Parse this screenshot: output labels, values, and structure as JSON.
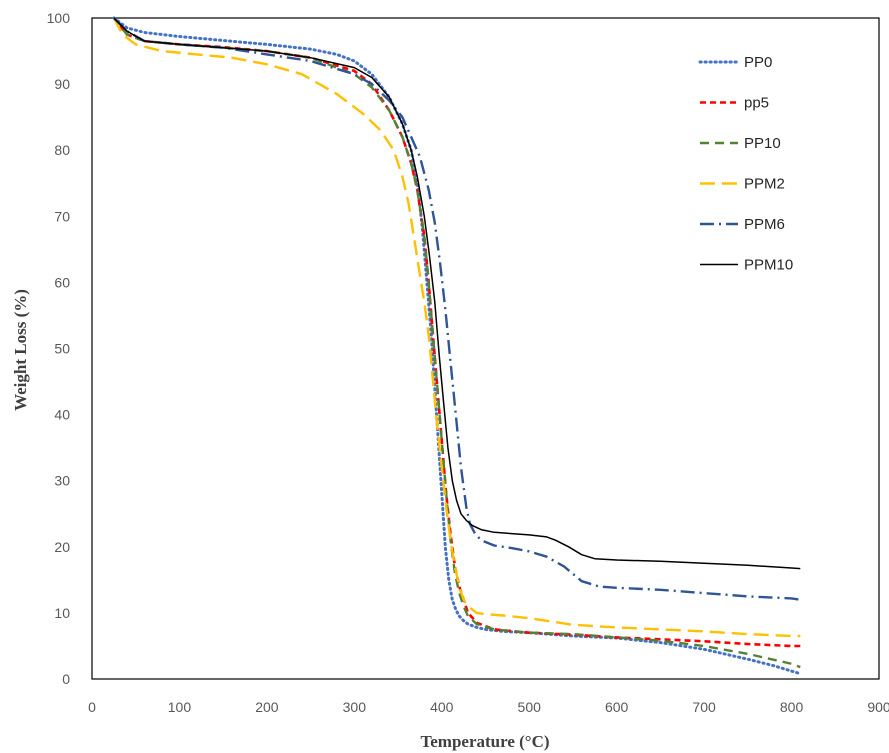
{
  "chart_data": {
    "type": "line",
    "title": "",
    "xlabel": "Temperature (°C)",
    "ylabel": "Weight Loss (%)",
    "xlim": [
      0,
      900
    ],
    "ylim": [
      0,
      100
    ],
    "xticks": [
      0,
      100,
      200,
      300,
      400,
      500,
      600,
      700,
      800,
      900
    ],
    "yticks": [
      0,
      10,
      20,
      30,
      40,
      50,
      60,
      70,
      80,
      90,
      100
    ],
    "grid": false,
    "legend_position": "top-right",
    "series": [
      {
        "name": "PP0",
        "color": "#4472C4",
        "dash": "dotted",
        "x": [
          25,
          40,
          60,
          100,
          150,
          200,
          250,
          280,
          300,
          320,
          340,
          355,
          365,
          372,
          378,
          383,
          388,
          392,
          396,
          400,
          404,
          408,
          412,
          416,
          420,
          425,
          430,
          440,
          450,
          470,
          500,
          550,
          600,
          650,
          700,
          750,
          780,
          800,
          810
        ],
        "y": [
          100,
          98.5,
          97.8,
          97.2,
          96.6,
          96,
          95.3,
          94.5,
          93.5,
          91.5,
          88,
          84,
          80,
          75,
          68,
          60,
          52,
          44,
          36,
          28,
          20,
          15,
          12,
          10.5,
          9.5,
          8.8,
          8.3,
          7.8,
          7.5,
          7.2,
          7,
          6.5,
          6.2,
          5.5,
          4.5,
          3,
          2,
          1.2,
          0.8
        ]
      },
      {
        "name": "pp5",
        "color": "#FF0000",
        "dash": "dashed",
        "x": [
          25,
          40,
          60,
          100,
          150,
          200,
          250,
          300,
          320,
          340,
          355,
          365,
          372,
          380,
          385,
          390,
          395,
          400,
          405,
          410,
          415,
          420,
          425,
          430,
          440,
          460,
          500,
          550,
          600,
          650,
          700,
          750,
          800,
          810
        ],
        "y": [
          100,
          97.5,
          96.5,
          96,
          95.6,
          95,
          94,
          92,
          90,
          86,
          82,
          78,
          74,
          67,
          60,
          52,
          44,
          36,
          28,
          22,
          17,
          14,
          12,
          10,
          8.5,
          7.5,
          7,
          6.7,
          6.3,
          6,
          5.7,
          5.3,
          5,
          5
        ]
      },
      {
        "name": "PP10",
        "color": "#548235",
        "dash": "longdash",
        "x": [
          25,
          40,
          60,
          100,
          150,
          200,
          250,
          300,
          320,
          340,
          355,
          365,
          372,
          380,
          385,
          390,
          395,
          400,
          405,
          410,
          415,
          420,
          425,
          430,
          440,
          460,
          500,
          550,
          600,
          650,
          700,
          750,
          800,
          810
        ],
        "y": [
          100,
          97.5,
          96.5,
          96,
          95.5,
          95,
          94,
          91.5,
          89.5,
          86,
          82,
          78,
          74,
          67,
          60,
          52,
          44,
          36,
          28,
          21,
          16,
          13,
          11,
          9.5,
          8.3,
          7.5,
          7,
          6.8,
          6.3,
          5.8,
          5,
          3.8,
          2.3,
          1.8
        ]
      },
      {
        "name": "PPM2",
        "color": "#FFC000",
        "dash": "verylong",
        "x": [
          25,
          35,
          50,
          80,
          120,
          160,
          200,
          240,
          280,
          310,
          330,
          345,
          355,
          362,
          368,
          374,
          380,
          386,
          390,
          395,
          400,
          405,
          410,
          415,
          420,
          425,
          430,
          440,
          450,
          470,
          500,
          520,
          550,
          600,
          650,
          700,
          750,
          800,
          810
        ],
        "y": [
          100,
          97.5,
          96,
          95,
          94.5,
          94,
          93,
          91.5,
          88.5,
          85.5,
          83,
          80,
          76,
          72,
          67,
          62,
          57,
          51,
          45,
          38,
          32,
          26,
          21,
          17,
          14,
          12,
          11,
          10,
          9.8,
          9.6,
          9.2,
          8.8,
          8.2,
          7.8,
          7.5,
          7.2,
          6.8,
          6.5,
          6.5
        ]
      },
      {
        "name": "PPM6",
        "color": "#2F5597",
        "dash": "dashdot",
        "x": [
          25,
          40,
          60,
          100,
          150,
          200,
          250,
          300,
          320,
          340,
          355,
          365,
          375,
          385,
          392,
          398,
          404,
          410,
          416,
          422,
          428,
          432,
          438,
          445,
          460,
          480,
          500,
          520,
          540,
          560,
          580,
          600,
          650,
          700,
          750,
          800,
          810
        ],
        "y": [
          100,
          98,
          96.5,
          96,
          95.5,
          94.5,
          93.5,
          91.5,
          90,
          87.5,
          85,
          82,
          79,
          74,
          69,
          63,
          56,
          48,
          40,
          32,
          26,
          23.5,
          22,
          21,
          20.2,
          19.8,
          19.3,
          18.5,
          17,
          14.8,
          14,
          13.8,
          13.5,
          13,
          12.5,
          12.2,
          12
        ]
      },
      {
        "name": "PPM10",
        "color": "#000000",
        "dash": "solid",
        "x": [
          25,
          40,
          60,
          100,
          150,
          200,
          250,
          300,
          320,
          340,
          355,
          365,
          372,
          380,
          386,
          392,
          397,
          402,
          407,
          412,
          417,
          422,
          428,
          435,
          445,
          460,
          480,
          500,
          520,
          530,
          545,
          560,
          575,
          600,
          650,
          700,
          750,
          800,
          810
        ],
        "y": [
          100,
          98,
          96.5,
          96,
          95.5,
          95,
          94,
          92.5,
          91,
          88,
          84,
          80,
          76,
          70,
          64,
          57,
          49,
          42,
          35,
          30,
          27,
          25,
          24,
          23.2,
          22.6,
          22.2,
          22,
          21.8,
          21.5,
          21,
          20,
          18.8,
          18.2,
          18,
          17.8,
          17.5,
          17.2,
          16.8,
          16.7
        ]
      }
    ]
  }
}
